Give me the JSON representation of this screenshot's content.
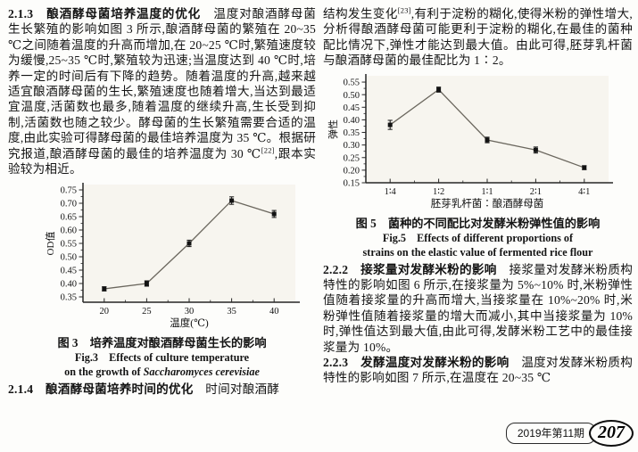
{
  "left_column": {
    "sec213_heading": "2.1.3　酿酒酵母菌培养温度的优化",
    "sec213_body1": "　温度对酿酒酵母菌生长繁殖的影响如图 3 所示,酿酒酵母菌的繁殖在 20~35 ℃之间随着温度的升高而增加,在 20~25 ℃时,繁殖速度较为缓慢,25~35 ℃时,繁殖较为迅速;当温度达到 40 ℃时,培养一定的时间后有下降的趋势。随着温度的升高,越来越适宜酿酒酵母菌的生长,繁殖速度也随着增大,当达到最适宜温度,活菌数也最多,随着温度的继续升高,生长受到抑制,活菌数也随之较少。酵母菌的生长繁殖需要合适的温度,由此实验可得酵母菌的最佳培养温度为 35 ℃。根据研究报道,酿酒酵母菌的最佳的培养温度为 30 ℃",
    "sec213_citation": "[22]",
    "sec213_body2": ",跟本实验较为相近。",
    "fig3_caption_cn": "图 3　培养温度对酿酒酵母菌生长的影响",
    "fig3_caption_en1": "Fig.3　Effects of culture temperature",
    "fig3_caption_en2_prefix": "on the growth of ",
    "fig3_caption_en2_species": "Saccharomyces cerevisiae",
    "sec214_heading": "2.1.4　酿酒酵母菌培养时间的优化",
    "sec214_body": "　时间对酿酒酵"
  },
  "right_column": {
    "cont_body1": "结构发生变化",
    "cont_citation": "[23]",
    "cont_body2": ",有利于淀粉的糊化,使得米粉的弹性增大,分析得酿酒酵母菌可能更利于淀粉的糊化,在最佳的菌种配比情况下,弹性才能达到最大值。由此可得,胚芽乳杆菌与酿酒酵母菌的最佳配比为 1∶2。",
    "fig5_caption_cn": "图 5　菌种的不同配比对发酵米粉弹性值的影响",
    "fig5_caption_en1": "Fig.5　Effects of different proportions of",
    "fig5_caption_en2": "strains on the elastic value of fermented rice flour",
    "sec222_heading": "2.2.2　接浆量对发酵米粉的影响",
    "sec222_body": "　接浆量对发酵米粉质构特性的影响如图 6 所示,在接浆量为 5%~10% 时,米粉弹性值随着接浆量的升高而增大,当接浆量在 10%~20% 时,米粉弹性值随着接浆量的增大而减小,其中当接浆量为 10% 时,弹性值达到最大值,由此可得,发酵米粉工艺中的最佳接浆量为 10%。",
    "sec223_heading": "2.2.3　发酵温度对发酵米粉的影响",
    "sec223_body": "　温度对发酵米粉质构特性的影响如图 7 所示,在温度在 20~35 ℃"
  },
  "footer": {
    "issue": "2019年第11期",
    "page_number": "207"
  },
  "chart_data": [
    {
      "id": "fig3",
      "type": "line",
      "title": "图 3 培养温度对酿酒酵母菌生长的影响 / Fig.3 Effects of culture temperature on the growth of Saccharomyces cerevisiae",
      "categories": [
        "20",
        "25",
        "30",
        "35",
        "40"
      ],
      "values": [
        0.38,
        0.4,
        0.55,
        0.71,
        0.66
      ],
      "error": [
        0.008,
        0.01,
        0.012,
        0.014,
        0.013
      ],
      "xlabel": "温度(℃)",
      "ylabel": "OD值",
      "ylim": [
        0.33,
        0.77
      ],
      "yticks": [
        0.35,
        0.4,
        0.45,
        0.5,
        0.55,
        0.6,
        0.65,
        0.7,
        0.75
      ],
      "marker": "square",
      "grid": false,
      "legend": "none",
      "line_color": "#6b675e",
      "marker_color": "#121212",
      "axis_color": "#262626",
      "plot_bg": "#f7f5ef"
    },
    {
      "id": "fig5",
      "type": "line",
      "title": "图 5 菌种的不同配比对发酵米粉弹性值的影响 / Fig.5 Effects of different proportions of strains on the elastic value of fermented rice flour",
      "categories": [
        "1∶4",
        "1∶2",
        "1∶1",
        "2∶1",
        "4∶1"
      ],
      "values": [
        0.38,
        0.52,
        0.32,
        0.28,
        0.21
      ],
      "error": [
        0.018,
        0.01,
        0.011,
        0.012,
        0.008
      ],
      "xlabel": "胚芽乳杆菌∶酿酒酵母菌",
      "ylabel": "弹性",
      "ylim": [
        0.15,
        0.575
      ],
      "yticks": [
        0.15,
        0.2,
        0.25,
        0.3,
        0.35,
        0.4,
        0.45,
        0.5,
        0.55
      ],
      "marker": "square",
      "grid": false,
      "legend": "none",
      "line_color": "#6b675e",
      "marker_color": "#121212",
      "axis_color": "#262626",
      "plot_bg": "#f7f5ef"
    }
  ]
}
